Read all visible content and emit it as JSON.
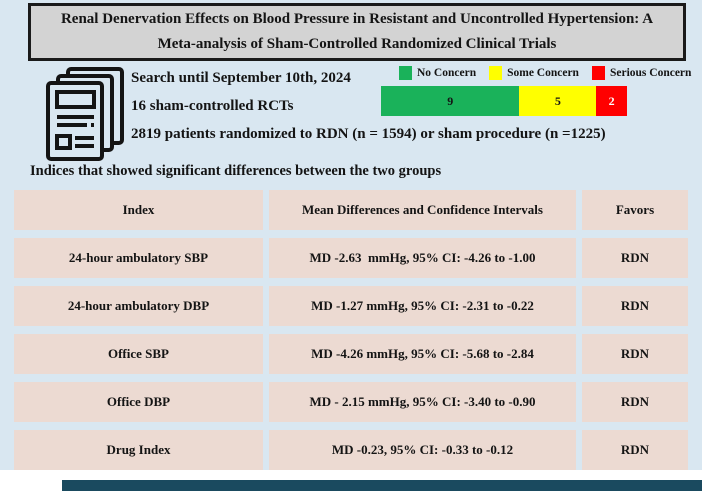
{
  "page": {
    "background_color": "#d9e7f1",
    "bottom_bar_color": "#1a4a5f"
  },
  "header": {
    "title": "Renal Denervation Effects on Blood Pressure in Resistant and Uncontrolled Hypertension: A Meta-analysis of Sham-Controlled Randomized Clinical Trials"
  },
  "summary": {
    "line1": "Search until September 10th, 2024",
    "line2": "16 sham-controlled RCTs",
    "line3": "2819 patients randomized to RDN (n = 1594) or sham procedure (n =1225)"
  },
  "rob": {
    "legend": [
      {
        "label": "No Concern",
        "color": "#1ab25a"
      },
      {
        "label": "Some Concern",
        "color": "#ffff00"
      },
      {
        "label": "Serious Concern",
        "color": "#ff0000"
      }
    ],
    "bar": [
      {
        "value": 9,
        "color": "#1ab25a",
        "text_color": "#141414"
      },
      {
        "value": 5,
        "color": "#ffff00",
        "text_color": "#141414"
      },
      {
        "value": 2,
        "color": "#ff0000",
        "text_color": "#ffffff"
      }
    ],
    "total": 16
  },
  "section_heading": "Indices that showed significant differences between the two groups",
  "table": {
    "headers": [
      "Index",
      "Mean Differences and Confidence Intervals",
      "Favors"
    ],
    "cell_color": "#ecdad2",
    "rows": [
      {
        "index": "24-hour ambulatory SBP",
        "md_ci": "MD -2.63  mmHg, 95% CI: -4.26 to -1.00",
        "favors": "RDN"
      },
      {
        "index": "24-hour ambulatory DBP",
        "md_ci": "MD -1.27 mmHg, 95% CI: -2.31 to -0.22",
        "favors": "RDN"
      },
      {
        "index": "Office SBP",
        "md_ci": "MD -4.26 mmHg, 95% CI: -5.68 to -2.84",
        "favors": "RDN"
      },
      {
        "index": "Office DBP",
        "md_ci": "MD - 2.15 mmHg, 95% CI: -3.40 to -0.90",
        "favors": "RDN"
      },
      {
        "index": "Drug Index",
        "md_ci": "MD -0.23, 95% CI: -0.33 to -0.12",
        "favors": "RDN"
      }
    ]
  },
  "chart_data": {
    "type": "bar",
    "subtype": "horizontal-stacked",
    "categories": [
      "No Concern",
      "Some Concern",
      "Serious Concern"
    ],
    "values": [
      9,
      5,
      2
    ],
    "colors": [
      "#1ab25a",
      "#ffff00",
      "#ff0000"
    ],
    "legend_position": "top",
    "total": 16
  }
}
